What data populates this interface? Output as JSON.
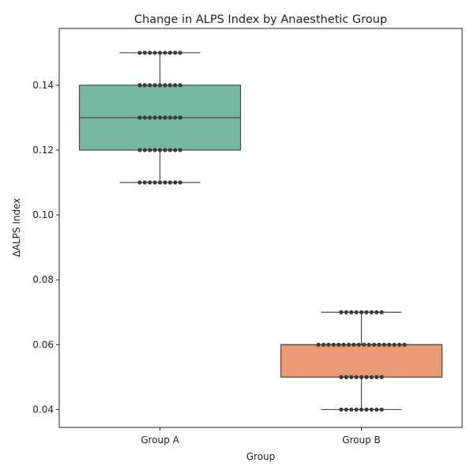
{
  "chart_data": {
    "type": "box",
    "title": "Change in ALPS Index by Anaesthetic Group",
    "xlabel": "Group",
    "ylabel": "ΔALPS Index",
    "categories": [
      "Group A",
      "Group B"
    ],
    "ylim": [
      0.0345,
      0.1575
    ],
    "yticks": [
      0.04,
      0.06,
      0.08,
      0.1,
      0.12,
      0.14
    ],
    "ytick_labels": [
      "0.04",
      "0.06",
      "0.08",
      "0.10",
      "0.12",
      "0.14"
    ],
    "grid": false,
    "boxes": [
      {
        "name": "Group A",
        "color": "#76b7a0",
        "whisker_low": 0.11,
        "q1": 0.12,
        "median": 0.13,
        "q3": 0.14,
        "whisker_high": 0.15,
        "points": [
          {
            "value": 0.15,
            "count": 9
          },
          {
            "value": 0.14,
            "count": 9
          },
          {
            "value": 0.13,
            "count": 9
          },
          {
            "value": 0.12,
            "count": 9
          },
          {
            "value": 0.11,
            "count": 9
          }
        ]
      },
      {
        "name": "Group B",
        "color": "#e99a74",
        "whisker_low": 0.04,
        "q1": 0.05,
        "median": 0.06,
        "q3": 0.06,
        "whisker_high": 0.07,
        "points": [
          {
            "value": 0.07,
            "count": 9
          },
          {
            "value": 0.06,
            "count": 18
          },
          {
            "value": 0.05,
            "count": 9
          },
          {
            "value": 0.04,
            "count": 9
          }
        ]
      }
    ]
  }
}
